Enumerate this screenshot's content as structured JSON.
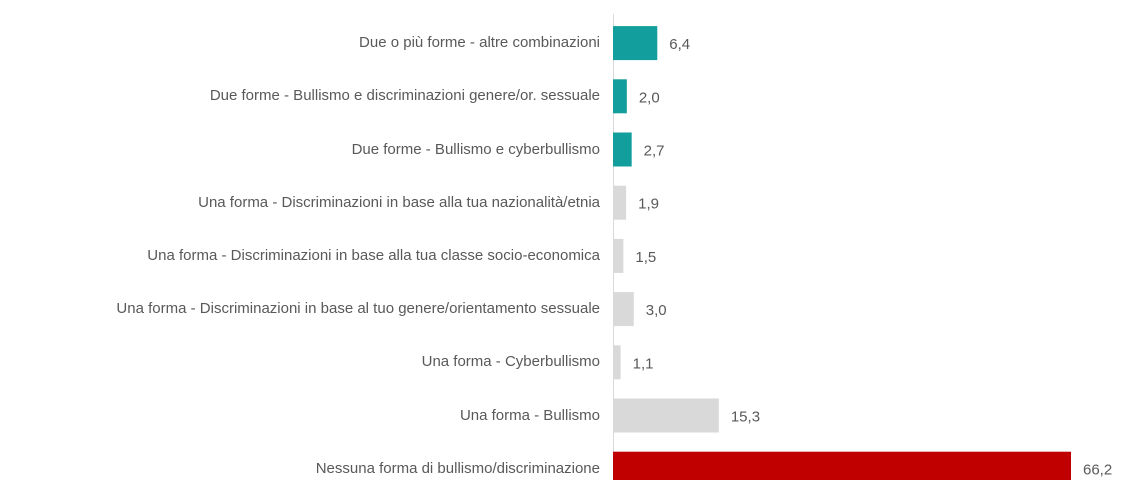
{
  "chart_data": {
    "type": "bar",
    "orientation": "horizontal",
    "categories": [
      "Due o più forme - altre combinazioni",
      "Due forme - Bullismo e discriminazioni genere/or. sessuale",
      "Due forme - Bullismo e cyberbullismo",
      "Una forma - Discriminazioni in base alla tua nazionalità/etnia",
      "Una forma - Discriminazioni in base alla tua classe socio-economica",
      "Una forma - Discriminazioni in base al tuo genere/orientamento sessuale",
      "Una forma - Cyberbullismo",
      "Una forma - Bullismo",
      "Nessuna forma di bullismo/discriminazione"
    ],
    "values": [
      6.4,
      2.0,
      2.7,
      1.9,
      1.5,
      3.0,
      1.1,
      15.3,
      66.2
    ],
    "value_labels": [
      "6,4",
      "2,0",
      "2,7",
      "1,9",
      "1,5",
      "3,0",
      "1,1",
      "15,3",
      "66,2"
    ],
    "colors": [
      "#139e9e",
      "#139e9e",
      "#139e9e",
      "#d9d9d9",
      "#d9d9d9",
      "#d9d9d9",
      "#d9d9d9",
      "#d9d9d9",
      "#c00000"
    ]
  }
}
